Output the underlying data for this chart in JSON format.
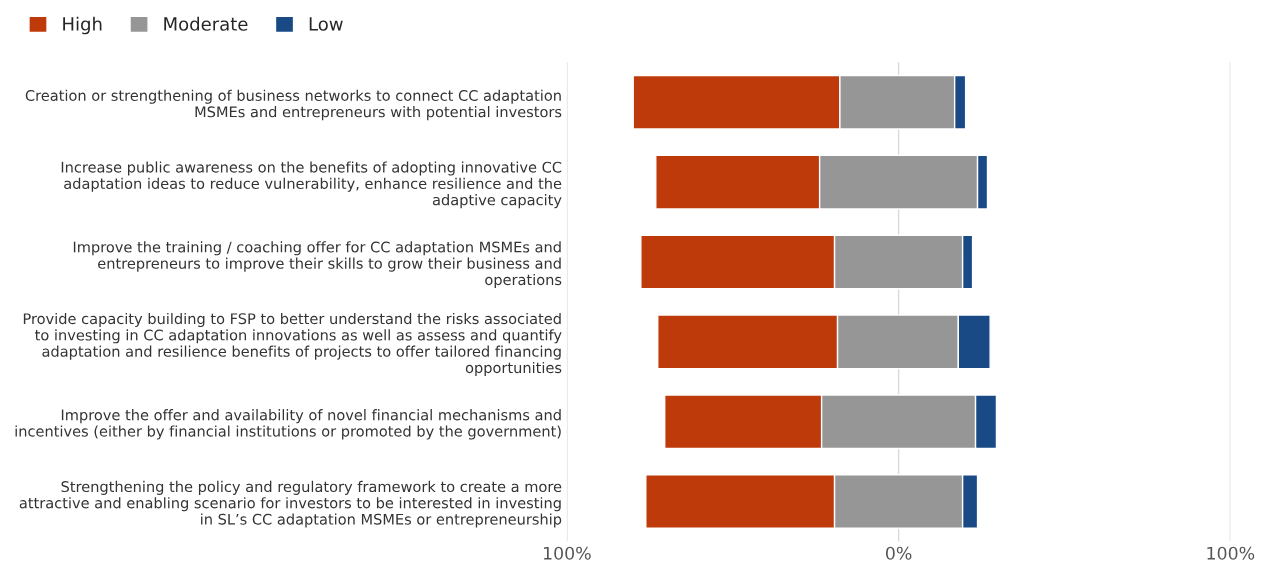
{
  "chart_data": {
    "type": "bar",
    "orientation": "horizontal",
    "categories": [
      "Creation or strengthening of business networks to connect CC adaptation\nMSMEs and entrepreneurs with potential investors",
      "Increase public awareness on the benefits of adopting innovative CC\nadaptation ideas to reduce vulnerability, enhance resilience and the\nadaptive capacity",
      "Improve the training / coaching offer for CC adaptation MSMEs and\nentrepreneurs to improve their skills to grow their business and\noperations",
      "Provide capacity building to FSP to better understand the risks associated\nto investing in CC adaptation innovations as well as assess and quantify\nadaptation and resilience benefits of projects to offer tailored financing\nopportunities",
      "Improve the offer and availability of novel financial mechanisms and\nincentives (either by financial institutions or promoted by the government)",
      "Strengthening the policy and regulatory framework to create a more\nattractive and enabling scenario for investors to be interested in investing\nin SL’s CC adaptation MSMEs or entrepreneurship"
    ],
    "series": [
      {
        "name": "High",
        "color": "#bf3a0a",
        "base": [
          -80.0,
          -73.2,
          -77.7,
          -72.6,
          -70.5,
          -76.2
        ],
        "values": [
          62.3,
          49.4,
          58.4,
          54.2,
          47.3,
          56.9
        ]
      },
      {
        "name": "Moderate",
        "color": "#969696",
        "base": [
          -17.7,
          -23.8,
          -19.3,
          -18.4,
          -23.2,
          -19.3
        ],
        "values": [
          34.6,
          47.6,
          38.6,
          36.4,
          46.4,
          38.6
        ]
      },
      {
        "name": "Low",
        "color": "#1a4a86",
        "base": [
          16.9,
          23.8,
          19.3,
          18.0,
          23.2,
          19.3
        ],
        "values": [
          3.3,
          3.0,
          3.0,
          9.6,
          6.3,
          4.5
        ]
      }
    ],
    "xlim": [
      -100,
      100
    ],
    "xticks": [
      {
        "value": -100,
        "label": "100%"
      },
      {
        "value": 0,
        "label": "0%"
      },
      {
        "value": 100,
        "label": "100%"
      }
    ],
    "grid": "x",
    "legend": "top left",
    "tick_labels": "x"
  }
}
